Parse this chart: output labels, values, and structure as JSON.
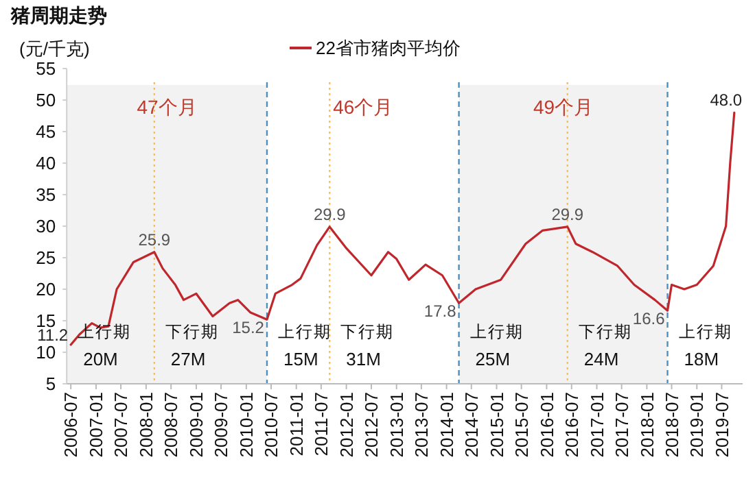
{
  "chart_data": {
    "type": "line",
    "title": "猪周期走势",
    "ylabel": "(元/千克)",
    "legend": "top",
    "x": [
      "2006-07",
      "2006-09",
      "2006-12",
      "2007-02",
      "2007-04",
      "2007-06",
      "2007-10",
      "2008-03",
      "2008-05",
      "2008-08",
      "2008-10",
      "2009-01",
      "2009-05",
      "2009-09",
      "2009-11",
      "2010-02",
      "2010-06",
      "2010-08",
      "2010-12",
      "2011-02",
      "2011-06",
      "2011-09",
      "2012-01",
      "2012-07",
      "2012-11",
      "2013-01",
      "2013-04",
      "2013-08",
      "2013-12",
      "2014-04",
      "2014-08",
      "2015-02",
      "2015-08",
      "2015-12",
      "2016-06",
      "2016-08",
      "2016-12",
      "2017-06",
      "2017-10",
      "2018-03",
      "2018-06",
      "2018-07",
      "2018-10",
      "2019-01",
      "2019-05",
      "2019-08",
      "2019-09",
      "2019-10"
    ],
    "series": [
      {
        "name": "22省市猪肉平均价",
        "color": "#c0272d",
        "values": [
          11.2,
          12.8,
          14.6,
          13.9,
          14.1,
          20,
          24.3,
          25.9,
          23.3,
          20.7,
          18.3,
          19.3,
          15.7,
          17.8,
          18.3,
          16.3,
          15.2,
          19.3,
          20.7,
          21.7,
          27,
          29.9,
          26.5,
          22.2,
          25.9,
          24.8,
          21.5,
          23.9,
          22.2,
          17.8,
          20,
          21.5,
          27.2,
          29.3,
          29.9,
          27.2,
          25.9,
          23.7,
          20.7,
          18.3,
          16.6,
          20.7,
          20,
          20.7,
          23.7,
          30,
          40,
          48.0
        ],
        "value_labels": [
          "11.2",
          null,
          null,
          null,
          null,
          null,
          null,
          "25.9",
          null,
          null,
          null,
          null,
          null,
          null,
          null,
          null,
          "15.2",
          null,
          null,
          null,
          null,
          "29.9",
          null,
          null,
          null,
          null,
          null,
          null,
          null,
          "17.8",
          null,
          null,
          null,
          null,
          "29.9",
          null,
          null,
          null,
          null,
          null,
          "16.6",
          null,
          null,
          null,
          null,
          null,
          null,
          "48.0"
        ]
      }
    ],
    "xlim": [
      "2006-06",
      "2019-12"
    ],
    "xticks": [
      "2006-07",
      "2007-01",
      "2007-07",
      "2008-01",
      "2008-07",
      "2009-01",
      "2009-07",
      "2010-01",
      "2010-07",
      "2011-01",
      "2011-07",
      "2012-01",
      "2012-07",
      "2013-01",
      "2013-07",
      "2014-01",
      "2014-07",
      "2015-01",
      "2015-07",
      "2016-01",
      "2016-07",
      "2017-01",
      "2017-07",
      "2018-01",
      "2018-07",
      "2019-01",
      "2019-07"
    ],
    "ylim": [
      5,
      55
    ],
    "yticks": [
      5,
      10,
      15,
      20,
      25,
      30,
      35,
      40,
      45,
      50,
      55
    ],
    "bands": [
      {
        "axis": "x",
        "from": "2006-06",
        "to": "2010-06",
        "label": "47个月",
        "color": "#f2f2f2"
      },
      {
        "axis": "x",
        "from": "2014-04",
        "to": "2018-06",
        "label": "49个月",
        "color": "#f2f2f2"
      }
    ],
    "ref_lines": [
      {
        "axis": "x",
        "value": "2010-06",
        "color": "#4f8fc0",
        "line_style": "dashed"
      },
      {
        "axis": "x",
        "value": "2014-04",
        "color": "#4f8fc0",
        "line_style": "dashed"
      },
      {
        "axis": "x",
        "value": "2018-06",
        "color": "#4f8fc0",
        "line_style": "dashed"
      },
      {
        "axis": "x",
        "value": "2008-03",
        "color": "#f0c070",
        "line_style": "dotted"
      },
      {
        "axis": "x",
        "value": "2011-09",
        "color": "#f0c070",
        "line_style": "dotted"
      },
      {
        "axis": "x",
        "value": "2016-06",
        "color": "#f0c070",
        "line_style": "dotted"
      }
    ],
    "annotations": [
      "46个月",
      "上行期",
      "20M",
      "下行期",
      "27M",
      "上行期",
      "15M",
      "下行期",
      "31M",
      "上行期",
      "25M",
      "下行期",
      "24M",
      "上行期",
      "18M"
    ]
  }
}
